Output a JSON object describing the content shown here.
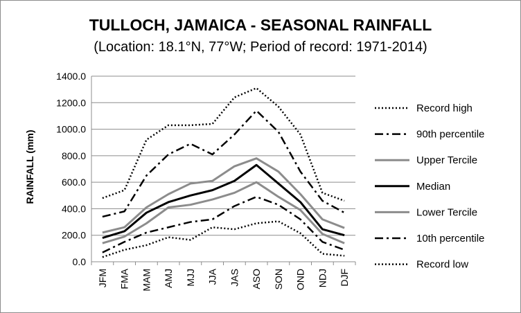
{
  "chart_data": {
    "type": "line",
    "title": "TULLOCH, JAMAICA - SEASONAL RAINFALL",
    "subtitle": "(Location: 18.1°N, 77°W; Period of record: 1971-2014)",
    "xlabel": "",
    "ylabel": "RAINFALL (mm)",
    "ylim": [
      0,
      1400
    ],
    "y_ticks": [
      "0.0",
      "200.0",
      "400.0",
      "600.0",
      "800.0",
      "1000.0",
      "1200.0",
      "1400.0"
    ],
    "grid": "horizontal",
    "legend_position": "right",
    "categories": [
      "JFM",
      "FMA",
      "MAM",
      "AMJ",
      "MJJ",
      "JJA",
      "JAS",
      "ASO",
      "SON",
      "OND",
      "NDJ",
      "DJF"
    ],
    "series": [
      {
        "name": "Record high",
        "style": "dotted",
        "color": "#000000",
        "values": [
          480,
          540,
          920,
          1030,
          1030,
          1040,
          1240,
          1310,
          1170,
          960,
          520,
          460
        ]
      },
      {
        "name": "90th percentile",
        "style": "dashdot",
        "color": "#000000",
        "values": [
          340,
          380,
          650,
          810,
          890,
          810,
          960,
          1140,
          980,
          680,
          460,
          370
        ]
      },
      {
        "name": "Upper Tercile",
        "style": "solid",
        "color": "#8c8c8c",
        "values": [
          220,
          260,
          410,
          510,
          590,
          610,
          720,
          780,
          680,
          510,
          320,
          255
        ]
      },
      {
        "name": "Median",
        "style": "solid",
        "color": "#000000",
        "values": [
          180,
          230,
          370,
          450,
          500,
          540,
          610,
          730,
          590,
          450,
          245,
          200
        ]
      },
      {
        "name": "Lower Tercile",
        "style": "solid",
        "color": "#8c8c8c",
        "values": [
          140,
          190,
          290,
          410,
          430,
          470,
          520,
          600,
          490,
          390,
          210,
          140
        ]
      },
      {
        "name": "10th percentile",
        "style": "dashdot",
        "color": "#000000",
        "values": [
          70,
          150,
          220,
          260,
          300,
          320,
          420,
          490,
          430,
          320,
          150,
          90
        ]
      },
      {
        "name": "Record low",
        "style": "dotted",
        "color": "#000000",
        "values": [
          35,
          90,
          125,
          185,
          165,
          260,
          245,
          290,
          305,
          215,
          60,
          45
        ]
      }
    ]
  }
}
